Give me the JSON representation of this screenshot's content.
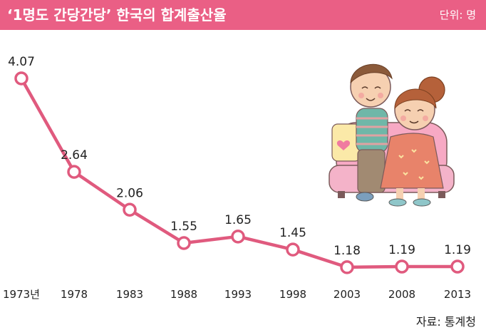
{
  "header": {
    "title": "‘1명도 간당간당’ 한국의 합계출산율",
    "unit": "단위: 명"
  },
  "source": "자료: 통계청",
  "colors": {
    "accent": "#ea5f85",
    "line": "#e05a7e",
    "marker_fill": "#ffffff"
  },
  "illustration": {
    "name": "couple-on-sofa-icon"
  },
  "chart_data": {
    "type": "line",
    "title": "‘1명도 간당간당’ 한국의 합계출산율",
    "xlabel": "",
    "ylabel": "",
    "unit": "단위: 명",
    "categories": [
      "1973년",
      "1978",
      "1983",
      "1988",
      "1993",
      "1998",
      "2003",
      "2008",
      "2013"
    ],
    "series": [
      {
        "values": [
          4.07,
          2.64,
          2.06,
          1.55,
          1.65,
          1.45,
          1.18,
          1.19,
          1.19
        ],
        "labels": [
          "4.07",
          "2.64",
          "2.06",
          "1.55",
          "1.65",
          "1.45",
          "1.18",
          "1.19",
          "1.19"
        ]
      }
    ],
    "grid": false,
    "legend": "none"
  }
}
